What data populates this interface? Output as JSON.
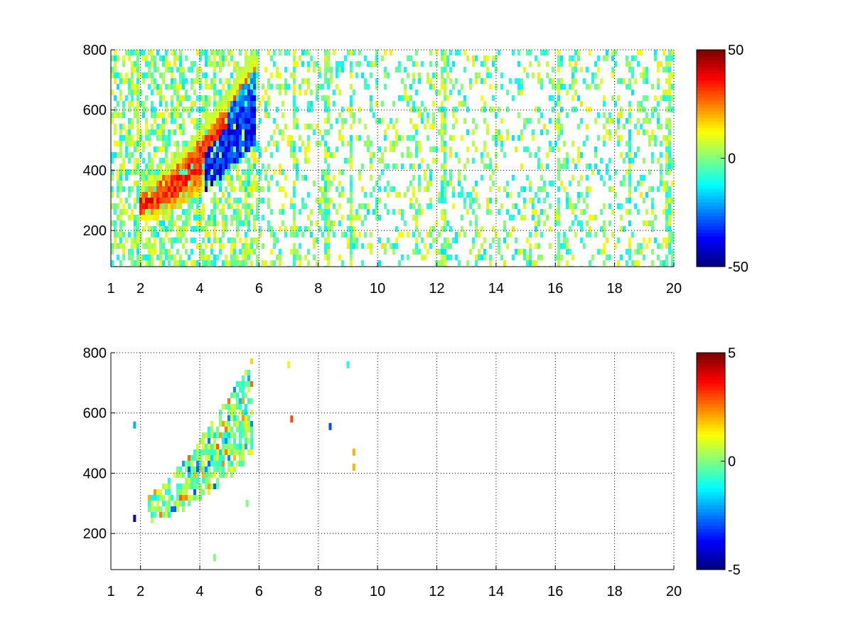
{
  "chart_data": [
    {
      "type": "heatmap",
      "title": "",
      "xlabel": "",
      "ylabel": "",
      "xlim": [
        1,
        20
      ],
      "ylim": [
        80,
        800
      ],
      "x_ticks": [
        1,
        2,
        4,
        6,
        8,
        10,
        12,
        14,
        16,
        18,
        20
      ],
      "y_ticks": [
        200,
        400,
        600,
        800
      ],
      "grid": true,
      "colormap": "jet",
      "colorbar": {
        "range": [
          -50,
          50
        ],
        "ticks": [
          50,
          0,
          -50
        ],
        "placement": "right"
      },
      "features": {
        "band": {
          "x_start": 2.0,
          "x_end": 5.9,
          "y_low_start": 240,
          "y_low_end": 500,
          "y_high_start": 340,
          "y_high_end": 800
        },
        "positive_region": {
          "approx_peak": 40,
          "location": "upper-left side of band (x 2.3–5, y 280–650)"
        },
        "negative_region": {
          "approx_peak": -45,
          "location": "right side of band (x 4–5.8, y 340–780)"
        },
        "noise_extent_x": [
          1,
          20
        ],
        "noise_level": [
          -15,
          15
        ],
        "vertical_streaks_x": [
          1.9,
          4.5,
          5.6,
          7.2,
          8.3,
          9.1,
          12.2,
          16.1,
          18.5,
          19.8
        ]
      }
    },
    {
      "type": "heatmap",
      "title": "",
      "xlabel": "",
      "ylabel": "",
      "xlim": [
        1,
        20
      ],
      "ylim": [
        80,
        800
      ],
      "x_ticks": [
        1,
        2,
        4,
        6,
        8,
        10,
        12,
        14,
        16,
        18,
        20
      ],
      "y_ticks": [
        200,
        400,
        600,
        800
      ],
      "grid": true,
      "colormap": "jet",
      "colorbar": {
        "range": [
          -5,
          5
        ],
        "ticks": [
          5,
          0,
          -5
        ],
        "placement": "right"
      },
      "features": {
        "band": {
          "x_start": 2.2,
          "x_end": 5.8,
          "y_low_start": 240,
          "y_low_end": 460,
          "y_high_start": 320,
          "y_high_end": 790
        },
        "values_in_band": [
          -3,
          3
        ],
        "isolated_points": [
          {
            "x": 7.1,
            "y": 580,
            "value": 3
          },
          {
            "x": 8.4,
            "y": 555,
            "value": -3
          },
          {
            "x": 9.2,
            "y": 470,
            "value": 2
          },
          {
            "x": 9.2,
            "y": 420,
            "value": 2
          },
          {
            "x": 9.0,
            "y": 760,
            "value": -1
          },
          {
            "x": 7.0,
            "y": 760,
            "value": 1
          },
          {
            "x": 1.8,
            "y": 250,
            "value": -4
          },
          {
            "x": 1.8,
            "y": 560,
            "value": -2
          },
          {
            "x": 4.5,
            "y": 120,
            "value": 0
          },
          {
            "x": 5.6,
            "y": 300,
            "value": 0
          }
        ]
      }
    }
  ]
}
